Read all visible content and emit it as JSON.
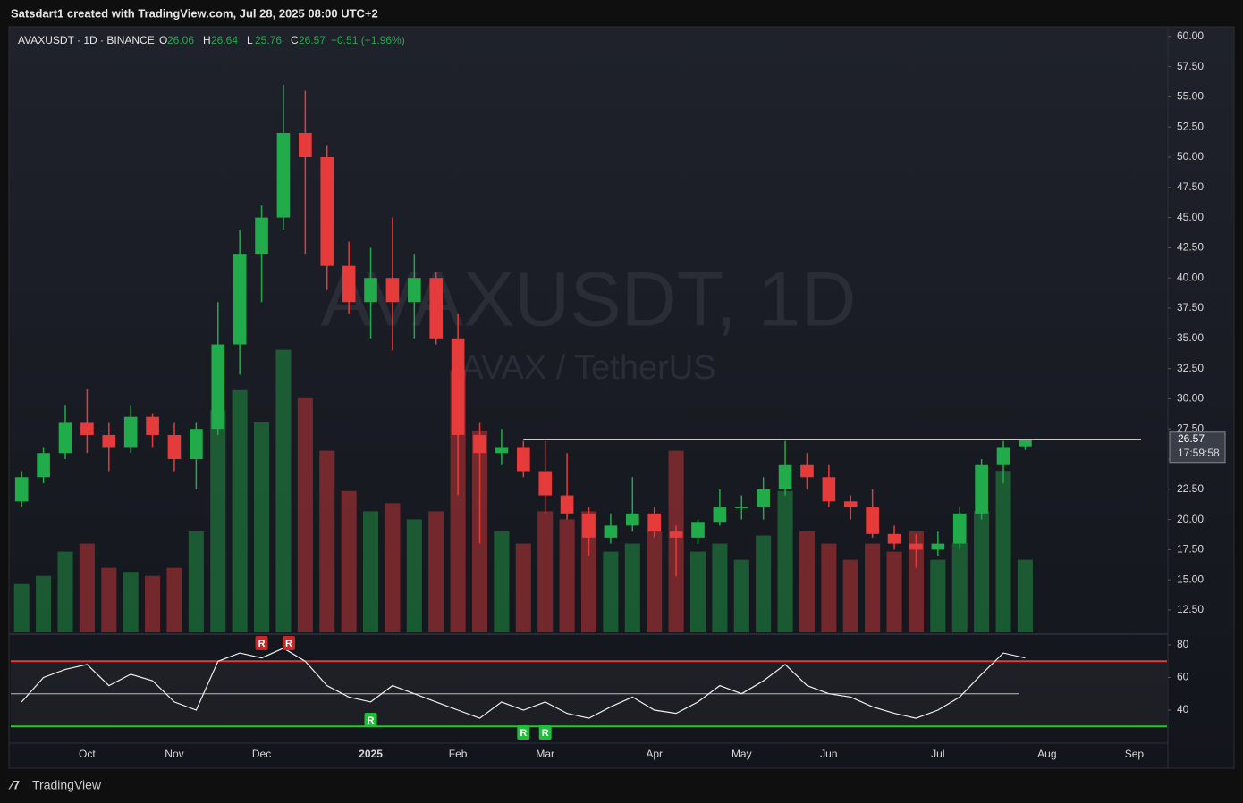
{
  "page": {
    "credit": "Satsdart1 created with TradingView.com, Jul 28, 2025 08:00 UTC+2",
    "logo": "TradingView"
  },
  "chart_data": {
    "type": "candlestick",
    "symbol": "AVAXUSDT · 1D · BINANCE",
    "watermark": "AVAXUSDT, 1D",
    "watermark_sub": "AVAX / TetherUS",
    "ohlc_letters": [
      "O",
      "H",
      "L",
      "C"
    ],
    "change": "+0.51 (+1.96%)",
    "countdown": "17:59:58",
    "categories": [
      null,
      null,
      null,
      "Oct",
      null,
      null,
      null,
      "Nov",
      null,
      null,
      null,
      "Dec",
      null,
      null,
      null,
      null,
      "2025",
      null,
      null,
      null,
      "Feb",
      null,
      null,
      null,
      "Mar",
      null,
      null,
      null,
      null,
      "Apr",
      null,
      null,
      null,
      "May",
      null,
      null,
      null,
      "Jun",
      null,
      null,
      null,
      null,
      "Jul",
      null,
      null,
      null,
      null,
      "Aug",
      null,
      null,
      null,
      "Sep",
      null
    ],
    "open": [
      21.5,
      23.5,
      25.5,
      28,
      27,
      26,
      28.5,
      27,
      25,
      27.5,
      34.5,
      42,
      45,
      52,
      50,
      41,
      38,
      40,
      38,
      40,
      35,
      27,
      25.5,
      26,
      24,
      22,
      20.5,
      18.5,
      19.5,
      20.5,
      19,
      18.5,
      19.8,
      21,
      21,
      22.5,
      24.5,
      23.5,
      21.5,
      21,
      18.8,
      18,
      17.5,
      18,
      20.5,
      24.5,
      26.06,
      null,
      null,
      null,
      null,
      null,
      null
    ],
    "high": [
      24,
      26,
      29.5,
      30.8,
      28,
      29.5,
      28.8,
      28,
      28,
      38,
      44,
      46,
      56,
      55.5,
      51,
      43,
      42.5,
      45,
      42,
      40.5,
      37,
      28,
      27.5,
      26.5,
      26.5,
      25.5,
      21,
      20.5,
      23.5,
      21,
      19.5,
      20,
      22.5,
      22,
      23.5,
      26.5,
      25.5,
      24.5,
      22,
      22.5,
      19.5,
      18.8,
      19,
      21,
      25,
      26.5,
      26.64,
      null,
      null,
      null,
      null,
      null,
      null
    ],
    "low": [
      21,
      23,
      25,
      25.5,
      24,
      25.5,
      26,
      24,
      22.5,
      27,
      32,
      38,
      44,
      42,
      39,
      37,
      35,
      34,
      35,
      34.5,
      22,
      18,
      24.5,
      23.5,
      20.5,
      20,
      17,
      18,
      19,
      18.5,
      15.3,
      18,
      19.5,
      20,
      20,
      22,
      22.5,
      21,
      20,
      18.5,
      17.5,
      16,
      17,
      17.5,
      20,
      23,
      25.76,
      null,
      null,
      null,
      null,
      null,
      null
    ],
    "close": [
      23.5,
      25.5,
      28,
      27,
      26,
      28.5,
      27,
      25,
      27.5,
      34.5,
      42,
      45,
      52,
      50,
      41,
      38,
      40,
      38,
      40,
      35,
      27,
      25.5,
      26,
      24,
      22,
      20.5,
      18.5,
      19.5,
      20.5,
      19,
      18.5,
      19.8,
      21,
      21,
      22.5,
      24.5,
      23.5,
      21.5,
      21,
      18.8,
      18,
      17.5,
      18,
      20.5,
      24.5,
      26,
      26.57,
      null,
      null,
      null,
      null,
      null,
      null
    ],
    "volume": [
      12,
      14,
      20,
      22,
      16,
      15,
      14,
      16,
      25,
      55,
      60,
      52,
      70,
      58,
      45,
      35,
      30,
      32,
      28,
      30,
      65,
      50,
      25,
      22,
      30,
      28,
      30,
      20,
      22,
      25,
      45,
      20,
      22,
      18,
      24,
      35,
      25,
      22,
      18,
      22,
      20,
      25,
      18,
      22,
      30,
      40,
      18,
      null,
      null,
      null,
      null,
      null,
      null
    ],
    "volume_lim": [
      0,
      150
    ],
    "colors": {
      "up": "#22ab4a",
      "down": "#e53b3b"
    },
    "ylim": [
      10.65,
      60.8
    ],
    "yticks": [
      {
        "value": 12.5,
        "label": "12.50"
      },
      {
        "value": 15,
        "label": "15.00"
      },
      {
        "value": 17.5,
        "label": "17.50"
      },
      {
        "value": 20,
        "label": "20.00"
      },
      {
        "value": 22.5,
        "label": "22.50"
      },
      {
        "value": 25,
        "label": "25.00"
      },
      {
        "value": 27.5,
        "label": "27.50"
      },
      {
        "value": 30,
        "label": "30.00"
      },
      {
        "value": 32.5,
        "label": "32.50"
      },
      {
        "value": 35,
        "label": "35.00"
      },
      {
        "value": 37.5,
        "label": "37.50"
      },
      {
        "value": 40,
        "label": "40.00"
      },
      {
        "value": 42.5,
        "label": "42.50"
      },
      {
        "value": 45,
        "label": "45.00"
      },
      {
        "value": 47.5,
        "label": "47.50"
      },
      {
        "value": 50,
        "label": "50.00"
      },
      {
        "value": 52.5,
        "label": "52.50"
      },
      {
        "value": 55,
        "label": "55.00"
      },
      {
        "value": 57.5,
        "label": "57.50"
      },
      {
        "value": 60,
        "label": "60.00"
      }
    ],
    "resistance": 26.6,
    "rsi": [
      45,
      60,
      65,
      68,
      55,
      62,
      58,
      45,
      40,
      70,
      75,
      72,
      78,
      70,
      55,
      48,
      45,
      55,
      50,
      45,
      40,
      35,
      45,
      40,
      45,
      38,
      35,
      42,
      48,
      40,
      38,
      45,
      55,
      50,
      58,
      68,
      55,
      50,
      48,
      42,
      38,
      35,
      40,
      48,
      62,
      75,
      72,
      null,
      null,
      null,
      null,
      null,
      null
    ],
    "rsi_lim": [
      19.7,
      85.5
    ],
    "rsi_ticks": [
      40,
      60,
      80
    ],
    "rsi_levels": [
      70,
      50,
      30
    ],
    "divergence_labels": [
      "R",
      "R",
      "R",
      "R",
      "R"
    ]
  }
}
